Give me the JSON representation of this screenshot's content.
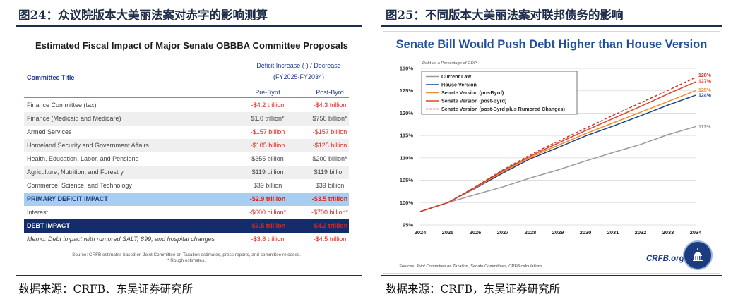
{
  "left_figure": {
    "caption": "图24：众议院版本大美丽法案对赤字的影响测算",
    "source": "数据来源：CRFB、东吴证券研究所",
    "table_title": "Estimated Fiscal Impact of Major Senate OBBBA Committee Proposals",
    "header": {
      "committee_title": "Committee Title",
      "group_line1": "Deficit Increase (-) / Decrease",
      "group_line2": "(FY2025-FY2034)",
      "col_prebyrd": "Pre-Byrd",
      "col_postbyrd": "Post-Byrd"
    },
    "rows": [
      {
        "label": "Finance Committee (tax)",
        "pre": "-$4.2 trillion",
        "post": "-$4.3 trillion",
        "pre_neg": true,
        "post_neg": true,
        "style": "normal"
      },
      {
        "label": "Finance (Medicaid and Medicare)",
        "pre": "$1.0 trillion*",
        "post": "$750 billion*",
        "pre_neg": false,
        "post_neg": false,
        "style": "alt"
      },
      {
        "label": "Armed Services",
        "pre": "-$157 billion",
        "post": "-$157 billion",
        "pre_neg": true,
        "post_neg": true,
        "style": "normal"
      },
      {
        "label": "Homeland Security and Government Affairs",
        "pre": "-$105 billion",
        "post": "-$125 billion",
        "pre_neg": true,
        "post_neg": true,
        "style": "alt"
      },
      {
        "label": "Health, Education, Labor, and Pensions",
        "pre": "$355 billion",
        "post": "$200 billion*",
        "pre_neg": false,
        "post_neg": false,
        "style": "normal"
      },
      {
        "label": "Agriculture, Nutrition, and Forestry",
        "pre": "$119 billion",
        "post": "$119 billion",
        "pre_neg": false,
        "post_neg": false,
        "style": "alt"
      },
      {
        "label": "Commerce, Science, and Technology",
        "pre": "$39 billion",
        "post": "$39 billion",
        "pre_neg": false,
        "post_neg": false,
        "style": "normal"
      },
      {
        "label": "PRIMARY DEFICIT IMPACT",
        "pre": "-$2.9 trillion",
        "post": "-$3.5 trillion",
        "pre_neg": true,
        "post_neg": true,
        "style": "primary"
      },
      {
        "label": "Interest",
        "pre": "-$600 billion*",
        "post": "-$700 billion*",
        "pre_neg": true,
        "post_neg": true,
        "style": "normal"
      },
      {
        "label": "DEBT IMPACT",
        "pre": "-$3.5 trillion",
        "post": "-$4.2 trillion",
        "pre_neg": true,
        "post_neg": true,
        "style": "debt"
      },
      {
        "label": "Memo: Debt impact with rumored SALT, 899, and hospital changes",
        "pre": "-$3.8 trillion",
        "post": "-$4.5 trillion",
        "pre_neg": true,
        "post_neg": true,
        "style": "memo"
      }
    ],
    "footnote_line1": "Source: CRFB estimates based on Joint Committee on Taxation estimates, press reports, and committee releases.",
    "footnote_line2": "* Rough estimates."
  },
  "right_figure": {
    "caption": "图25：不同版本大美丽法案对联邦债务的影响",
    "source": "数据来源：CRFB，东吴证券研究所",
    "chart_source": "Sources: Joint Committee on Taxation, Senate Committees, CRFB calculations",
    "logo_text": "CRFB.org"
  },
  "chart_data": {
    "type": "line",
    "title": "Senate Bill Would Push Debt Higher than House Version",
    "ylabel": "Debt as a Percentage of GDP",
    "xlabel": "",
    "x": [
      2024,
      2025,
      2026,
      2027,
      2028,
      2029,
      2030,
      2031,
      2032,
      2033,
      2034
    ],
    "ylim": [
      95,
      130
    ],
    "yticks": [
      95,
      100,
      105,
      110,
      115,
      120,
      125,
      130
    ],
    "ytick_suffix": "%",
    "grid": "horizontal",
    "legend": "top-left",
    "series": [
      {
        "name": "Current Law",
        "color": "#9a9a9a",
        "dash": false,
        "end_label": "117%",
        "values": [
          98,
          100,
          101.8,
          103.5,
          105.5,
          107.3,
          109.3,
          111.2,
          113,
          115.2,
          117
        ]
      },
      {
        "name": "House Version",
        "color": "#1c4587",
        "dash": false,
        "end_label": "124%",
        "values": [
          98,
          100,
          103.2,
          106.6,
          109.8,
          112.3,
          114.9,
          117.1,
          119.4,
          121.8,
          124
        ]
      },
      {
        "name": "Senate Version (pre-Byrd)",
        "color": "#f28c28",
        "dash": false,
        "end_label": "125%",
        "values": [
          98,
          100,
          103.3,
          106.9,
          110.1,
          112.8,
          115.4,
          117.8,
          120.2,
          122.6,
          125
        ]
      },
      {
        "name": "Senate Version (post-Byrd)",
        "color": "#e2432a",
        "dash": false,
        "end_label": "127%",
        "values": [
          98,
          100,
          103.4,
          107.1,
          110.4,
          113.3,
          116.1,
          118.8,
          121.5,
          124.3,
          127
        ]
      },
      {
        "name": "Senate Version (post-Byrd plus Rumored Changes)",
        "color": "#c0392b",
        "dash": true,
        "end_label": "128%",
        "values": [
          98,
          100,
          103.5,
          107.3,
          110.7,
          113.7,
          116.6,
          119.5,
          122.3,
          125.1,
          128
        ]
      }
    ]
  }
}
